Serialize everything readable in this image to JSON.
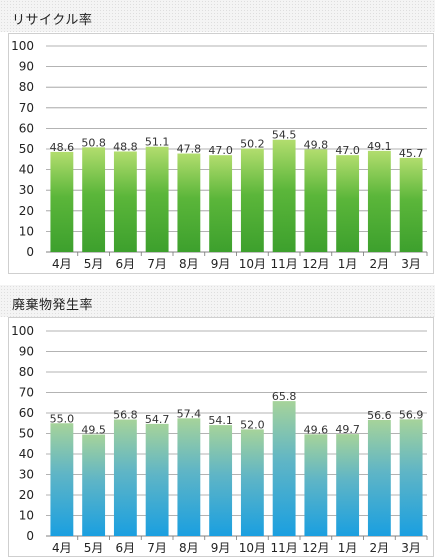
{
  "chart_data": [
    {
      "type": "bar",
      "title": "リサイクル率",
      "categories": [
        "4月",
        "5月",
        "6月",
        "7月",
        "8月",
        "9月",
        "10月",
        "11月",
        "12月",
        "1月",
        "2月",
        "3月"
      ],
      "values": [
        48.6,
        50.8,
        48.8,
        51.1,
        47.8,
        47.0,
        50.2,
        54.5,
        49.8,
        47.0,
        49.1,
        45.7
      ],
      "data_labels": [
        "48.6",
        "50.8",
        "48.8",
        "51.1",
        "47.8",
        "47.0",
        "50.2",
        "54.5",
        "49.8",
        "47.0",
        "49.1",
        "45.7"
      ],
      "y_ticks": [
        "0",
        "10",
        "20",
        "30",
        "40",
        "50",
        "60",
        "70",
        "80",
        "90",
        "100"
      ],
      "ylim": [
        0,
        100
      ],
      "grid": true,
      "colors": {
        "bar_top": "#b2dd6e",
        "bar_mid": "#5bb63a",
        "bar_bottom": "#3da02d",
        "grid": "#9a9a9a"
      }
    },
    {
      "type": "bar",
      "title": "廃棄物発生率",
      "categories": [
        "4月",
        "5月",
        "6月",
        "7月",
        "8月",
        "9月",
        "10月",
        "11月",
        "12月",
        "1月",
        "2月",
        "3月"
      ],
      "values": [
        55.0,
        49.5,
        56.8,
        54.7,
        57.4,
        54.1,
        52.0,
        65.8,
        49.6,
        49.7,
        56.6,
        56.9
      ],
      "data_labels": [
        "55.0",
        "49.5",
        "56.8",
        "54.7",
        "57.4",
        "54.1",
        "52.0",
        "65.8",
        "49.6",
        "49.7",
        "56.6",
        "56.9"
      ],
      "y_ticks": [
        "0",
        "10",
        "20",
        "30",
        "40",
        "50",
        "60",
        "70",
        "80",
        "90",
        "100"
      ],
      "ylim": [
        0,
        100
      ],
      "grid": true,
      "colors": {
        "bar_top": "#a6d39a",
        "bar_mid": "#5fb5c6",
        "bar_bottom": "#1a9fe0",
        "grid": "#9a9a9a"
      }
    }
  ]
}
